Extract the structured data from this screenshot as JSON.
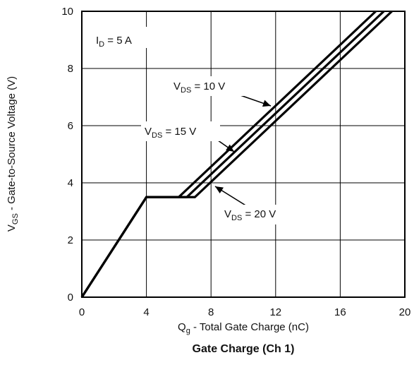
{
  "chart_data": {
    "type": "line",
    "title": "Gate Charge (Ch 1)",
    "xlabel": {
      "main": "Q",
      "sub": "g",
      "rest": " - Total Gate Charge (nC)"
    },
    "ylabel": {
      "main": "V",
      "sub": "GS",
      "rest": " - Gate-to-Source Voltage (V)"
    },
    "xlim": [
      0,
      20
    ],
    "ylim": [
      0,
      10
    ],
    "x_ticks": [
      0,
      4,
      8,
      12,
      16,
      20
    ],
    "y_ticks": [
      0,
      2,
      4,
      6,
      8,
      10
    ],
    "grid": true,
    "condition": {
      "main": "I",
      "sub": "D",
      "rest": " = 5  A"
    },
    "series": [
      {
        "name": "V_DS = 10 V",
        "x": [
          0,
          4,
          6,
          18.2
        ],
        "y": [
          0,
          3.5,
          3.5,
          10
        ]
      },
      {
        "name": "V_DS = 15 V",
        "x": [
          0,
          4,
          6.5,
          18.7
        ],
        "y": [
          0,
          3.5,
          3.5,
          10
        ]
      },
      {
        "name": "V_DS = 20 V",
        "x": [
          0,
          4,
          7,
          19.2
        ],
        "y": [
          0,
          3.5,
          3.5,
          10
        ]
      }
    ],
    "annotations": [
      {
        "main": "V",
        "sub": "DS",
        "rest": " = 10 V"
      },
      {
        "main": "V",
        "sub": "DS",
        "rest": " = 15 V"
      },
      {
        "main": "V",
        "sub": "DS",
        "rest": " = 20 V"
      }
    ],
    "line_color": "#000000",
    "grid_color": "#000000"
  }
}
